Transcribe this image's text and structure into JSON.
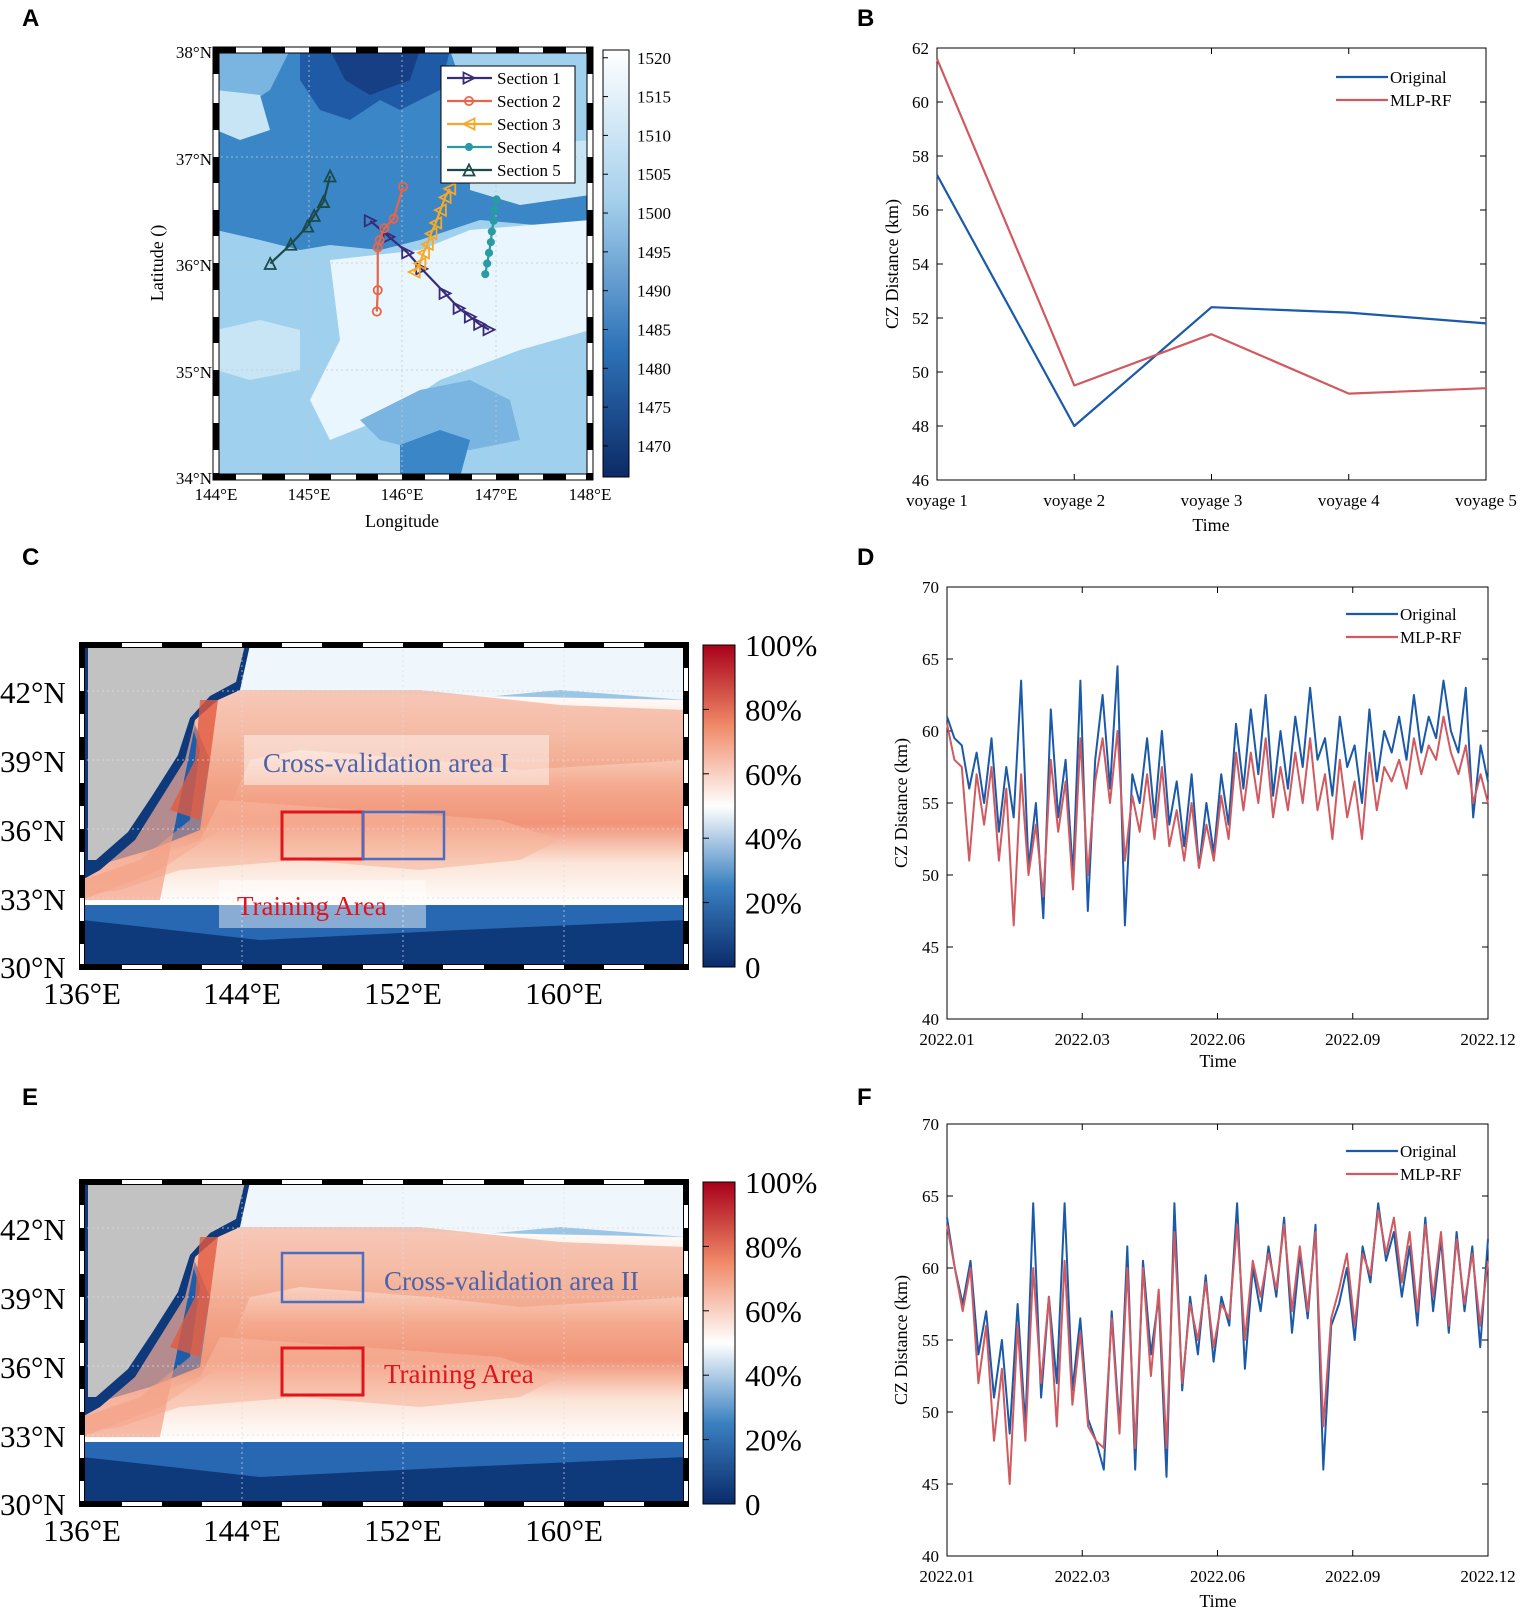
{
  "panel_labels": [
    "A",
    "B",
    "C",
    "D",
    "E",
    "F"
  ],
  "chart_data": [
    {
      "panel": "A",
      "type": "scatter",
      "subtype": "filled contour map with section tracks",
      "xlabel": "Longitude",
      "ylabel": "Latitude ()",
      "xlim": [
        144,
        148
      ],
      "ylim": [
        34,
        38
      ],
      "x_ticks": [
        "144°E",
        "145°E",
        "146°E",
        "147°E",
        "148°E"
      ],
      "y_ticks": [
        "34°N",
        "35°N",
        "36°N",
        "37°N",
        "38°N"
      ],
      "colorbar": {
        "min": 1466,
        "max": 1521,
        "ticks": [
          1470,
          1475,
          1480,
          1485,
          1490,
          1495,
          1500,
          1505,
          1510,
          1515,
          1520
        ],
        "colors": [
          "#0c2a66",
          "#2e72b8",
          "#a6d0ec",
          "#ffffff"
        ]
      },
      "series": [
        {
          "name": "Section 1",
          "color": "#3a2a7a",
          "marker": "triangle-right",
          "points": [
            [
              145.65,
              36.4
            ],
            [
              145.85,
              36.25
            ],
            [
              146.05,
              36.1
            ],
            [
              146.2,
              35.95
            ],
            [
              146.45,
              35.72
            ],
            [
              146.6,
              35.58
            ],
            [
              146.72,
              35.5
            ],
            [
              146.82,
              35.43
            ],
            [
              146.92,
              35.38
            ]
          ]
        },
        {
          "name": "Section 2",
          "color": "#e8654a",
          "marker": "circle",
          "points": [
            [
              145.72,
              35.55
            ],
            [
              145.73,
              35.75
            ],
            [
              145.73,
              36.15
            ],
            [
              145.75,
              36.22
            ],
            [
              145.8,
              36.33
            ],
            [
              145.9,
              36.42
            ],
            [
              146.0,
              36.72
            ]
          ]
        },
        {
          "name": "Section 3",
          "color": "#f6a928",
          "marker": "triangle-left",
          "points": [
            [
              146.12,
              35.92
            ],
            [
              146.18,
              36.0
            ],
            [
              146.22,
              36.1
            ],
            [
              146.26,
              36.18
            ],
            [
              146.3,
              36.28
            ],
            [
              146.35,
              36.38
            ],
            [
              146.4,
              36.5
            ],
            [
              146.45,
              36.62
            ],
            [
              146.5,
              36.7
            ]
          ]
        },
        {
          "name": "Section 4",
          "color": "#2a9aa4",
          "marker": "filled-circle",
          "points": [
            [
              146.88,
              35.9
            ],
            [
              146.9,
              36.0
            ],
            [
              146.92,
              36.1
            ],
            [
              146.94,
              36.2
            ],
            [
              146.95,
              36.3
            ],
            [
              146.97,
              36.4
            ],
            [
              146.98,
              36.5
            ],
            [
              147.0,
              36.6
            ]
          ]
        },
        {
          "name": "Section 5",
          "color": "#1b4a48",
          "marker": "triangle-up",
          "points": [
            [
              144.58,
              36.0
            ],
            [
              144.8,
              36.18
            ],
            [
              144.98,
              36.35
            ],
            [
              145.05,
              36.45
            ],
            [
              145.15,
              36.58
            ],
            [
              145.22,
              36.82
            ]
          ]
        }
      ]
    },
    {
      "panel": "B",
      "type": "line",
      "xlabel": "Time",
      "ylabel": "CZ Distance (km)",
      "categories": [
        "voyage 1",
        "voyage 2",
        "voyage 3",
        "voyage 4",
        "voyage 5"
      ],
      "ylim": [
        46,
        62
      ],
      "y_ticks": [
        46,
        48,
        50,
        52,
        54,
        56,
        58,
        60,
        62
      ],
      "legend_position": "top-right",
      "series": [
        {
          "name": "Original",
          "color": "#1a5aa8",
          "values": [
            57.3,
            48.0,
            52.4,
            52.2,
            51.8
          ]
        },
        {
          "name": "MLP-RF",
          "color": "#d05a60",
          "values": [
            61.6,
            49.5,
            51.4,
            49.2,
            49.4
          ]
        }
      ]
    },
    {
      "panel": "C",
      "type": "heatmap",
      "subtype": "map",
      "xlim": [
        136,
        167
      ],
      "ylim": [
        30,
        44
      ],
      "x_ticks": [
        "136°E",
        "144°E",
        "152°E",
        "160°E"
      ],
      "y_ticks": [
        "30°N",
        "33°N",
        "36°N",
        "39°N",
        "42°N"
      ],
      "colorbar": {
        "min": 0,
        "max": 100,
        "ticks": [
          "0",
          "20%",
          "40%",
          "60%",
          "80%",
          "100%"
        ],
        "colors": [
          "#0a2a6a",
          "#4a90c8",
          "#ffffff",
          "#f08a68",
          "#a8001a"
        ]
      },
      "annotations": [
        {
          "text": "Cross-validation area I",
          "color": "#4d62a8"
        },
        {
          "text": "Training Area",
          "color": "#e0141c"
        }
      ],
      "boxes": [
        {
          "name": "Training Area",
          "color": "#e0141c",
          "lon": [
            146,
            150
          ],
          "lat": [
            35,
            37.5
          ]
        },
        {
          "name": "Cross-validation area I",
          "color": "#4d6ec0",
          "lon": [
            150,
            154
          ],
          "lat": [
            35,
            37.5
          ]
        }
      ]
    },
    {
      "panel": "D",
      "type": "line",
      "xlabel": "Time",
      "ylabel": "CZ Distance (km)",
      "x_ticks": [
        "2022.01",
        "2022.03",
        "2022.06",
        "2022.09",
        "2022.12"
      ],
      "ylim": [
        40,
        70
      ],
      "y_ticks": [
        40,
        45,
        50,
        55,
        60,
        65,
        70
      ],
      "legend_position": "top-right",
      "series": [
        {
          "name": "Original",
          "color": "#1a5aa8",
          "values": [
            61.0,
            59.5,
            59.0,
            56.0,
            58.5,
            55.0,
            59.5,
            53.0,
            57.5,
            54.0,
            63.5,
            50.5,
            55.0,
            47.0,
            61.5,
            54.0,
            58.0,
            50.0,
            63.5,
            47.5,
            58.0,
            62.5,
            56.0,
            64.5,
            46.5,
            57.0,
            55.0,
            59.5,
            54.0,
            60.0,
            53.5,
            56.5,
            52.0,
            57.0,
            50.5,
            55.0,
            51.5,
            57.0,
            53.5,
            60.5,
            56.0,
            61.5,
            57.0,
            62.5,
            55.5,
            60.0,
            56.0,
            61.0,
            57.5,
            63.0,
            58.0,
            59.5,
            55.5,
            61.0,
            57.5,
            59.0,
            55.0,
            61.5,
            56.5,
            60.0,
            58.5,
            61.0,
            58.0,
            62.5,
            58.5,
            61.0,
            59.5,
            63.5,
            60.0,
            58.5,
            63.0,
            54.0,
            59.0,
            56.5
          ]
        },
        {
          "name": "MLP-RF",
          "color": "#d05a60",
          "values": [
            60.5,
            58.0,
            57.5,
            51.0,
            57.0,
            53.5,
            57.5,
            51.0,
            56.0,
            46.5,
            57.0,
            50.0,
            53.5,
            48.5,
            58.0,
            53.0,
            56.5,
            49.0,
            59.5,
            50.0,
            56.5,
            59.5,
            55.0,
            60.0,
            51.0,
            55.5,
            53.0,
            57.0,
            52.5,
            57.5,
            52.0,
            54.5,
            51.0,
            55.0,
            50.5,
            53.5,
            51.0,
            55.5,
            52.5,
            58.5,
            54.5,
            58.5,
            55.0,
            59.5,
            54.0,
            57.5,
            54.5,
            58.5,
            55.0,
            59.5,
            54.5,
            57.0,
            52.5,
            58.0,
            54.0,
            56.5,
            52.5,
            58.5,
            54.5,
            57.5,
            56.5,
            58.0,
            56.0,
            59.5,
            57.0,
            59.0,
            58.0,
            61.0,
            58.5,
            57.0,
            59.0,
            55.0,
            57.0,
            55.0
          ]
        }
      ]
    },
    {
      "panel": "E",
      "type": "heatmap",
      "subtype": "map",
      "xlim": [
        136,
        167
      ],
      "ylim": [
        30,
        44
      ],
      "x_ticks": [
        "136°E",
        "144°E",
        "152°E",
        "160°E"
      ],
      "y_ticks": [
        "30°N",
        "33°N",
        "36°N",
        "39°N",
        "42°N"
      ],
      "colorbar": {
        "min": 0,
        "max": 100,
        "ticks": [
          "0",
          "20%",
          "40%",
          "60%",
          "80%",
          "100%"
        ],
        "colors": [
          "#0a2a6a",
          "#4a90c8",
          "#ffffff",
          "#f08a68",
          "#a8001a"
        ]
      },
      "annotations": [
        {
          "text": "Cross-validation area II",
          "color": "#4d62a8"
        },
        {
          "text": "Training Area",
          "color": "#e0141c"
        }
      ],
      "boxes": [
        {
          "name": "Cross-validation area II",
          "color": "#4d6ec0",
          "lon": [
            146,
            150
          ],
          "lat": [
            38.9,
            41.3
          ]
        },
        {
          "name": "Training Area",
          "color": "#e0141c",
          "lon": [
            146,
            150
          ],
          "lat": [
            35,
            37.5
          ]
        }
      ]
    },
    {
      "panel": "F",
      "type": "line",
      "xlabel": "Time",
      "ylabel": "CZ Distance (km)",
      "x_ticks": [
        "2022.01",
        "2022.03",
        "2022.06",
        "2022.09",
        "2022.12"
      ],
      "ylim": [
        40,
        70
      ],
      "y_ticks": [
        40,
        45,
        50,
        55,
        60,
        65,
        70
      ],
      "legend_position": "top-right",
      "series": [
        {
          "name": "Original",
          "color": "#1a5aa8",
          "values": [
            63.5,
            60.0,
            57.5,
            60.5,
            54.0,
            57.0,
            51.0,
            55.0,
            48.5,
            57.5,
            49.0,
            64.5,
            51.0,
            58.0,
            52.0,
            64.5,
            51.5,
            56.5,
            49.5,
            48.0,
            46.0,
            57.0,
            49.0,
            61.5,
            46.0,
            60.5,
            54.0,
            58.0,
            45.5,
            64.5,
            51.5,
            58.0,
            54.0,
            59.5,
            53.5,
            58.0,
            56.0,
            64.5,
            53.0,
            60.0,
            57.0,
            61.5,
            58.0,
            63.5,
            55.5,
            61.0,
            56.5,
            63.0,
            46.0,
            56.0,
            57.5,
            60.0,
            55.0,
            61.5,
            59.0,
            64.5,
            60.5,
            62.5,
            58.0,
            61.5,
            56.0,
            63.5,
            57.0,
            62.0,
            55.5,
            62.5,
            57.0,
            61.5,
            54.5,
            62.0
          ]
        },
        {
          "name": "MLP-RF",
          "color": "#d05a60",
          "values": [
            63.0,
            60.0,
            57.0,
            60.0,
            52.0,
            56.0,
            48.0,
            53.0,
            45.0,
            56.0,
            48.0,
            60.0,
            52.0,
            58.0,
            49.0,
            60.5,
            50.5,
            55.5,
            49.0,
            48.0,
            47.5,
            56.5,
            48.5,
            60.0,
            47.5,
            60.0,
            52.5,
            58.5,
            47.5,
            62.5,
            52.0,
            57.5,
            55.0,
            59.0,
            54.5,
            57.5,
            56.5,
            63.0,
            55.0,
            60.5,
            58.0,
            61.0,
            58.5,
            63.0,
            57.0,
            61.5,
            57.0,
            62.5,
            49.0,
            56.5,
            58.5,
            61.0,
            56.0,
            61.0,
            59.5,
            64.0,
            61.0,
            63.5,
            59.0,
            62.5,
            57.0,
            63.0,
            58.0,
            62.5,
            56.0,
            62.0,
            57.5,
            61.0,
            56.0,
            60.5
          ]
        }
      ]
    }
  ]
}
